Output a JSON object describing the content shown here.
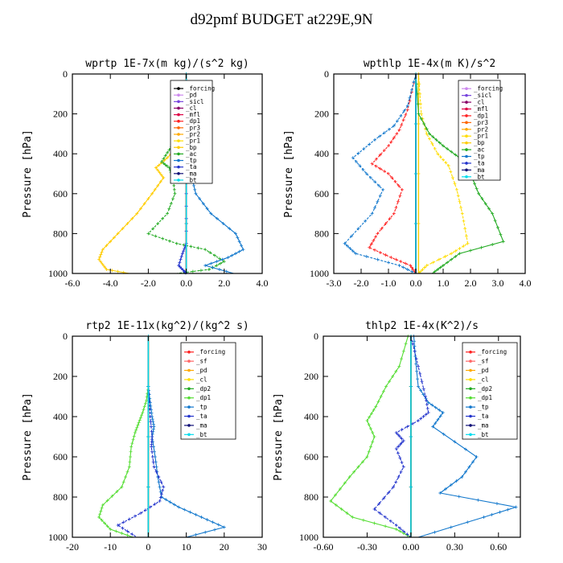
{
  "figure_title": "d92pmf  BUDGET at229E,9N",
  "chart_data": [
    {
      "type": "line",
      "title": "wprtp  1E-7x(m kg)/(s^2 kg)",
      "ylabel": "Pressure [hPa]",
      "xlim": [
        -6,
        4
      ],
      "ylim": [
        1000,
        0
      ],
      "xticks": [
        -6,
        -4,
        -2,
        0,
        2,
        4
      ],
      "xtick_labels": [
        "-6.0",
        "-4.0",
        "-2.0",
        "0.0",
        "2.0",
        "4.0"
      ],
      "yticks": [
        0,
        200,
        400,
        600,
        800,
        1000
      ],
      "yticks_labels": [
        "0",
        "200",
        "400",
        "600",
        "800",
        "1000"
      ],
      "legend_position": "top-right",
      "series": [
        {
          "name": "_forcing",
          "color": "#000000",
          "x": [
            0,
            0
          ],
          "y": [
            0,
            1000
          ]
        },
        {
          "name": "_pd",
          "color": "#cc88ee",
          "x": [
            0,
            0
          ],
          "y": [
            0,
            1000
          ]
        },
        {
          "name": "_sicl",
          "color": "#7744dd",
          "x": [
            0,
            0
          ],
          "y": [
            0,
            1000
          ]
        },
        {
          "name": "_cl",
          "color": "#880066",
          "x": [
            0,
            0
          ],
          "y": [
            0,
            1000
          ]
        },
        {
          "name": "_mfl",
          "color": "#dd0044",
          "x": [
            0,
            0
          ],
          "y": [
            0,
            1000
          ]
        },
        {
          "name": "_dp1",
          "color": "#ff2222",
          "x": [
            0,
            0
          ],
          "y": [
            0,
            1000
          ]
        },
        {
          "name": "_pr3",
          "color": "#ff6600",
          "x": [
            0,
            0
          ],
          "y": [
            0,
            1000
          ]
        },
        {
          "name": "_pr2",
          "color": "#ffaa00",
          "x": [
            0,
            0
          ],
          "y": [
            0,
            1000
          ]
        },
        {
          "name": "_pr1",
          "color": "#ffdd00",
          "x": [
            0,
            0
          ],
          "y": [
            0,
            1000
          ]
        },
        {
          "name": "_bp",
          "color": "#ffcc00",
          "x": [
            0,
            -0.3,
            -1.0,
            -1.6,
            -1.2,
            -1.8,
            -2.6,
            -3.6,
            -4.4,
            -4.6,
            -4.2,
            -3.0
          ],
          "y": [
            250,
            350,
            420,
            470,
            520,
            600,
            700,
            800,
            880,
            930,
            980,
            1000
          ]
        },
        {
          "name": "_ac",
          "color": "#22aa22",
          "x": [
            0,
            -0.4,
            -0.9,
            -1.3,
            -0.9,
            -0.7,
            -0.6,
            -1.0,
            -2.0,
            -0.5,
            1.0,
            2.0,
            1.2,
            -0.5
          ],
          "y": [
            250,
            320,
            380,
            440,
            470,
            520,
            600,
            700,
            800,
            850,
            880,
            940,
            980,
            1000
          ]
        },
        {
          "name": "_tp",
          "color": "#1177cc",
          "x": [
            0,
            0.4,
            0.9,
            0.6,
            0.3,
            0.5,
            1.3,
            2.6,
            3.0,
            2.2,
            1.0,
            2.5
          ],
          "y": [
            250,
            350,
            420,
            470,
            520,
            600,
            700,
            800,
            880,
            920,
            960,
            1000
          ]
        },
        {
          "name": "_ta",
          "color": "#2233cc",
          "x": [
            0,
            0,
            0,
            -0.2,
            -0.4,
            -0.1,
            0
          ],
          "y": [
            0,
            600,
            850,
            900,
            960,
            990,
            1000
          ]
        },
        {
          "name": "_ma",
          "color": "#111177",
          "x": [
            0,
            0
          ],
          "y": [
            0,
            1000
          ]
        },
        {
          "name": "_bt",
          "color": "#00ddee",
          "x": [
            0,
            0
          ],
          "y": [
            0,
            1000
          ]
        }
      ]
    },
    {
      "type": "line",
      "title": "wpthlp  1E-4x(m K)/s^2",
      "ylabel": "Pressure [hPa]",
      "xlim": [
        -3,
        4
      ],
      "ylim": [
        1000,
        0
      ],
      "xticks": [
        -3,
        -2,
        -1,
        0,
        1,
        2,
        3,
        4
      ],
      "xtick_labels": [
        "-3.0",
        "-2.0",
        "-1.0",
        "0.0",
        "1.0",
        "2.0",
        "3.0",
        "4.0"
      ],
      "yticks": [
        0,
        200,
        400,
        600,
        800,
        1000
      ],
      "yticks_labels": [
        "0",
        "200",
        "400",
        "600",
        "800",
        "1000"
      ],
      "legend_position": "top-right",
      "series": [
        {
          "name": "_forcing",
          "color": "#cc88ee",
          "x": [
            0,
            0
          ],
          "y": [
            0,
            1000
          ]
        },
        {
          "name": "_sicl",
          "color": "#7744dd",
          "x": [
            0,
            0
          ],
          "y": [
            0,
            1000
          ]
        },
        {
          "name": "_cl",
          "color": "#880066",
          "x": [
            0,
            0
          ],
          "y": [
            0,
            1000
          ]
        },
        {
          "name": "_mfl",
          "color": "#dd0044",
          "x": [
            0,
            0
          ],
          "y": [
            0,
            1000
          ]
        },
        {
          "name": "_dp1",
          "color": "#ff2222",
          "x": [
            0,
            -0.3,
            -0.6,
            -1.0,
            -1.6,
            -1.0,
            -0.5,
            -0.8,
            -1.4,
            -1.7,
            -0.9,
            -0.2,
            0
          ],
          "y": [
            0,
            180,
            280,
            360,
            450,
            500,
            580,
            700,
            800,
            870,
            920,
            960,
            1000
          ]
        },
        {
          "name": "_pr3",
          "color": "#ff6600",
          "x": [
            0,
            0
          ],
          "y": [
            0,
            1000
          ]
        },
        {
          "name": "_pr2",
          "color": "#ffaa00",
          "x": [
            0,
            0
          ],
          "y": [
            0,
            1000
          ]
        },
        {
          "name": "_pr1",
          "color": "#ffdd00",
          "x": [
            0.1,
            0.2,
            0.4,
            0.8,
            1.2,
            1.5,
            1.7,
            1.9,
            1.3,
            0.4,
            0.1
          ],
          "y": [
            0,
            200,
            300,
            400,
            460,
            580,
            700,
            850,
            900,
            960,
            1000
          ]
        },
        {
          "name": "_bp",
          "color": "#ffcc00",
          "x": [
            0.1,
            0.1
          ],
          "y": [
            0,
            1000
          ]
        },
        {
          "name": "_ac",
          "color": "#22aa22",
          "x": [
            0,
            0.1,
            0.5,
            1.0,
            1.6,
            2.0,
            2.3,
            2.8,
            3.2,
            1.6,
            1.0,
            0.6
          ],
          "y": [
            0,
            200,
            300,
            360,
            420,
            500,
            600,
            700,
            840,
            900,
            960,
            1000
          ]
        },
        {
          "name": "_tp",
          "color": "#1177cc",
          "x": [
            0,
            -0.3,
            -0.8,
            -1.5,
            -2.3,
            -1.8,
            -1.2,
            -1.6,
            -2.6,
            -2.2,
            -0.6,
            0
          ],
          "y": [
            0,
            160,
            260,
            330,
            420,
            500,
            580,
            700,
            850,
            900,
            960,
            1000
          ]
        },
        {
          "name": "_ta",
          "color": "#2233cc",
          "x": [
            0,
            0
          ],
          "y": [
            0,
            1000
          ]
        },
        {
          "name": "_ma",
          "color": "#111177",
          "x": [
            0,
            0
          ],
          "y": [
            0,
            1000
          ]
        },
        {
          "name": "_bt",
          "color": "#00ddee",
          "x": [
            0,
            0
          ],
          "y": [
            0,
            1000
          ]
        }
      ]
    },
    {
      "type": "line",
      "title": "rtp2  1E-11x(kg^2)/(kg^2 s)",
      "ylabel": "Pressure [hPa]",
      "xlim": [
        -20,
        30
      ],
      "ylim": [
        1000,
        0
      ],
      "xticks": [
        -20,
        -10,
        0,
        10,
        20,
        30
      ],
      "xtick_labels": [
        "-20",
        "-10",
        "0",
        "10",
        "20",
        "30"
      ],
      "yticks": [
        0,
        200,
        400,
        600,
        800,
        1000
      ],
      "yticks_labels": [
        "0",
        "200",
        "400",
        "600",
        "800",
        "1000"
      ],
      "legend_position": "top-right",
      "series": [
        {
          "name": "_forcing",
          "color": "#ff2222",
          "x": [
            0,
            0
          ],
          "y": [
            0,
            1000
          ]
        },
        {
          "name": "_sf",
          "color": "#ff6666",
          "x": [
            0,
            0
          ],
          "y": [
            0,
            1000
          ]
        },
        {
          "name": "_pd",
          "color": "#ffaa00",
          "x": [
            0,
            0
          ],
          "y": [
            0,
            1000
          ]
        },
        {
          "name": "_cl",
          "color": "#ffdd00",
          "x": [
            0,
            0
          ],
          "y": [
            0,
            1000
          ]
        },
        {
          "name": "_dp2",
          "color": "#22aa22",
          "x": [
            0,
            0
          ],
          "y": [
            0,
            1000
          ]
        },
        {
          "name": "_dp1",
          "color": "#55dd33",
          "x": [
            0,
            -0.5,
            -1.5,
            -2.5,
            -3.5,
            -4.5,
            -5.0,
            -7.0,
            -12.0,
            -13.0,
            -10.0,
            -4.0
          ],
          "y": [
            250,
            320,
            380,
            430,
            480,
            550,
            650,
            750,
            840,
            900,
            960,
            1000
          ]
        },
        {
          "name": "_tp",
          "color": "#1177cc",
          "x": [
            0,
            0.5,
            1.0,
            1.5,
            1.0,
            1.8,
            2.5,
            3.5,
            8.0,
            14.0,
            20.0,
            10.0
          ],
          "y": [
            250,
            330,
            400,
            450,
            500,
            600,
            700,
            800,
            850,
            900,
            950,
            1000
          ]
        },
        {
          "name": "_ta",
          "color": "#2233cc",
          "x": [
            0,
            0.5,
            1.0,
            0.8,
            1.5,
            4.0,
            3.0,
            -2.0,
            -8.0,
            -3.0
          ],
          "y": [
            250,
            400,
            500,
            550,
            650,
            750,
            820,
            880,
            940,
            1000
          ]
        },
        {
          "name": "_ma",
          "color": "#111177",
          "x": [
            0,
            0
          ],
          "y": [
            0,
            1000
          ]
        },
        {
          "name": "_bt",
          "color": "#00ddee",
          "x": [
            0,
            0
          ],
          "y": [
            0,
            1000
          ]
        }
      ]
    },
    {
      "type": "line",
      "title": "thlp2  1E-4x(K^2)/s",
      "ylabel": "Pressure [hPa]",
      "xlim": [
        -0.6,
        0.75
      ],
      "ylim": [
        1000,
        0
      ],
      "xticks": [
        -0.6,
        -0.3,
        0,
        0.3,
        0.6
      ],
      "xtick_labels": [
        "-0.60",
        "-0.30",
        "0.00",
        "0.30",
        "0.60"
      ],
      "yticks": [
        0,
        200,
        400,
        600,
        800,
        1000
      ],
      "yticks_labels": [
        "0",
        "200",
        "400",
        "600",
        "800",
        "1000"
      ],
      "legend_position": "top-right",
      "series": [
        {
          "name": "_forcing",
          "color": "#ff2222",
          "x": [
            0,
            0
          ],
          "y": [
            0,
            1000
          ]
        },
        {
          "name": "_sf",
          "color": "#ff6666",
          "x": [
            0,
            0
          ],
          "y": [
            0,
            1000
          ]
        },
        {
          "name": "_pd",
          "color": "#ffaa00",
          "x": [
            0,
            0
          ],
          "y": [
            0,
            1000
          ]
        },
        {
          "name": "_cl",
          "color": "#ffdd00",
          "x": [
            0,
            0
          ],
          "y": [
            0,
            1000
          ]
        },
        {
          "name": "_dp2",
          "color": "#22aa22",
          "x": [
            0,
            0
          ],
          "y": [
            0,
            1000
          ]
        },
        {
          "name": "_dp1",
          "color": "#55dd33",
          "x": [
            -0.02,
            -0.08,
            -0.17,
            -0.24,
            -0.3,
            -0.25,
            -0.3,
            -0.42,
            -0.55,
            -0.4,
            -0.1,
            0
          ],
          "y": [
            0,
            150,
            250,
            350,
            420,
            500,
            600,
            700,
            820,
            900,
            960,
            1000
          ]
        },
        {
          "name": "_tp",
          "color": "#1177cc",
          "x": [
            0.02,
            0.03,
            0.05,
            0.12,
            0.22,
            0.15,
            0.45,
            0.35,
            0.2,
            0.72,
            0.5,
            0.05
          ],
          "y": [
            0,
            100,
            250,
            330,
            380,
            450,
            600,
            700,
            780,
            850,
            900,
            1000
          ]
        },
        {
          "name": "_ta",
          "color": "#2233cc",
          "x": [
            0,
            0.05,
            0.1,
            0.12,
            0.05,
            -0.1,
            -0.05,
            -0.1,
            -0.05,
            -0.12,
            -0.25,
            -0.1,
            0
          ],
          "y": [
            0,
            150,
            300,
            380,
            420,
            480,
            520,
            560,
            650,
            750,
            860,
            940,
            1000
          ]
        },
        {
          "name": "_ma",
          "color": "#111177",
          "x": [
            0,
            0
          ],
          "y": [
            0,
            1000
          ]
        },
        {
          "name": "_bt",
          "color": "#00ddee",
          "x": [
            0,
            0
          ],
          "y": [
            0,
            1000
          ]
        }
      ]
    }
  ]
}
